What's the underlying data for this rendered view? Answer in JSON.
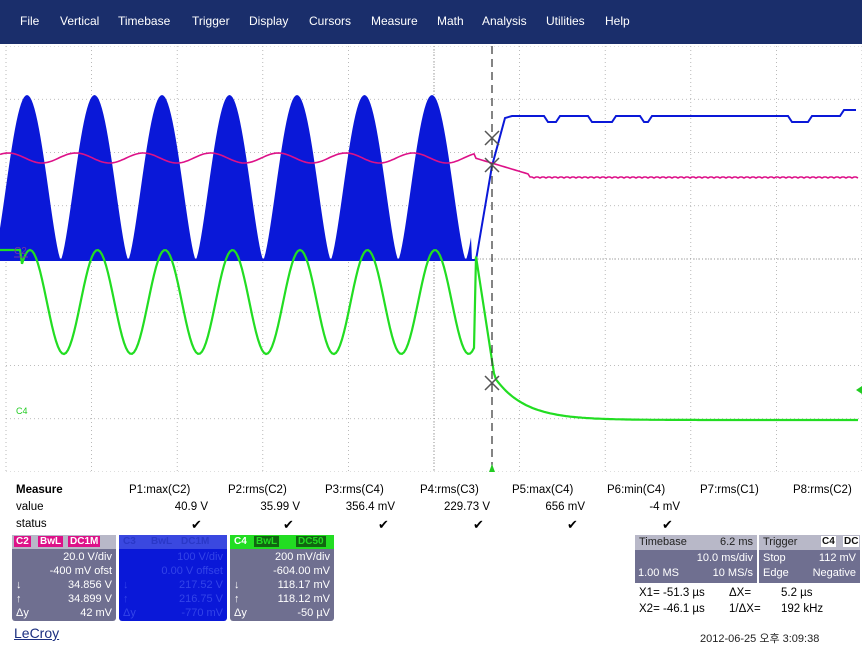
{
  "menu": [
    "File",
    "Vertical",
    "Timebase",
    "Trigger",
    "Display",
    "Cursors",
    "Measure",
    "Math",
    "Analysis",
    "Utilities",
    "Help"
  ],
  "markers": {
    "c2_ref": "C2",
    "c4_ref": "C4"
  },
  "colors": {
    "menubar": "#1a2e6b",
    "c2": "#dd1188",
    "c3": "#0a18d8",
    "c4": "#22dd22",
    "panel": "#6f6f90",
    "grid": "#9a9a9a"
  },
  "measure": {
    "title": "Measure",
    "row_labels": [
      "value",
      "status"
    ],
    "params": [
      {
        "name": "P1:max(C2)",
        "value": "40.9 V",
        "status": "✔"
      },
      {
        "name": "P2:rms(C2)",
        "value": "35.99 V",
        "status": "✔"
      },
      {
        "name": "P3:rms(C4)",
        "value": "356.4 mV",
        "status": "✔"
      },
      {
        "name": "P4:rms(C3)",
        "value": "229.73 V",
        "status": "✔"
      },
      {
        "name": "P5:max(C4)",
        "value": "656 mV",
        "status": "✔"
      },
      {
        "name": "P6:min(C4)",
        "value": "-4 mV",
        "status": "✔"
      },
      {
        "name": "P7:rms(C1)",
        "value": "",
        "status": ""
      },
      {
        "name": "P8:rms(C2)",
        "value": "",
        "status": ""
      }
    ]
  },
  "channels": {
    "c2": {
      "tag": "C2",
      "bw": "BwL",
      "coupling": "DC1M",
      "vdiv": "20.0 V/div",
      "offset": "-400 mV ofst",
      "c1": "34.856 V",
      "c2v": "34.899 V",
      "dy_label": "Δy",
      "dy": "42 mV"
    },
    "c3": {
      "tag": "C3",
      "bw": "BwL",
      "coupling": "DC1M",
      "vdiv": "100 V/div",
      "offset": "0.00 V offset",
      "c1": "217.52 V",
      "c2v": "216.75 V",
      "dy_label": "Δy",
      "dy": "-770 mV"
    },
    "c4": {
      "tag": "C4",
      "bw": "BwL",
      "coupling": "DC50",
      "vdiv": "200 mV/div",
      "offset": "-604.00 mV",
      "c1": "118.17 mV",
      "c2v": "118.12 mV",
      "dy_label": "Δy",
      "dy": "-50 µV"
    }
  },
  "timebase": {
    "label": "Timebase",
    "delay": "6.2 ms",
    "tdiv": "10.0 ms/div",
    "samples": "1.00 MS",
    "rate": "10 MS/s"
  },
  "trigger": {
    "label": "Trigger",
    "tag": "C4",
    "coupling": "DC",
    "mode": "Stop",
    "level": "112 mV",
    "type": "Edge",
    "slope": "Negative"
  },
  "cursors": {
    "x1_label": "X1=",
    "x1": "-51.3 µs",
    "dx_label": "ΔX=",
    "dx": "5.2 µs",
    "x2_label": "X2=",
    "x2": "-46.1 µs",
    "inv_label": "1/ΔX=",
    "inv": "192 kHz"
  },
  "brand": "LeCroy",
  "timestamp": "2012-06-25 오후 3:09:38"
}
